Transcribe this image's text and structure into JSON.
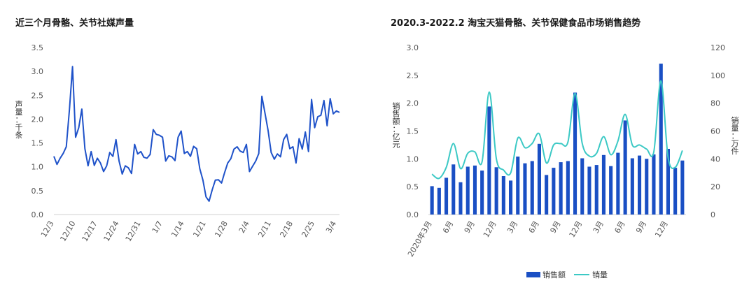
{
  "colors": {
    "line1": "#1f52c9",
    "bar": "#1a4fc4",
    "line2": "#3cc9c5",
    "axis": "#d0d0d0"
  },
  "chart_data": [
    {
      "type": "line",
      "title": "近三个月骨骼、关节社媒声量",
      "ylabel": "声量：千条",
      "ylim": [
        0,
        3.5
      ],
      "yticks": [
        "0.0",
        "0.5",
        "1.0",
        "1.5",
        "2.0",
        "2.5",
        "3.0",
        "3.5"
      ],
      "x": [
        "12/3",
        "12/4",
        "12/5",
        "12/6",
        "12/7",
        "12/8",
        "12/9",
        "12/10",
        "12/11",
        "12/12",
        "12/13",
        "12/14",
        "12/15",
        "12/16",
        "12/17",
        "12/18",
        "12/19",
        "12/20",
        "12/21",
        "12/22",
        "12/23",
        "12/24",
        "12/25",
        "12/26",
        "12/27",
        "12/28",
        "12/29",
        "12/30",
        "12/31",
        "1/1",
        "1/2",
        "1/3",
        "1/4",
        "1/5",
        "1/6",
        "1/7",
        "1/8",
        "1/9",
        "1/10",
        "1/11",
        "1/12",
        "1/13",
        "1/14",
        "1/15",
        "1/16",
        "1/17",
        "1/18",
        "1/19",
        "1/20",
        "1/21",
        "1/22",
        "1/23",
        "1/24",
        "1/25",
        "1/26",
        "1/27",
        "1/28",
        "1/29",
        "1/30",
        "1/31",
        "2/1",
        "2/2",
        "2/3",
        "2/4",
        "2/5",
        "2/6",
        "2/7",
        "2/8",
        "2/9",
        "2/10",
        "2/11",
        "2/12",
        "2/13",
        "2/14",
        "2/15",
        "2/16",
        "2/17",
        "2/18",
        "2/19",
        "2/20",
        "2/21",
        "2/22",
        "2/23",
        "2/24",
        "2/25",
        "2/26",
        "2/27",
        "2/28",
        "3/1",
        "3/2",
        "3/3",
        "3/4",
        "3/5"
      ],
      "xtick_labels": [
        "12/3",
        "12/10",
        "12/17",
        "12/24",
        "12/31",
        "1/7",
        "1/14",
        "1/21",
        "1/28",
        "2/4",
        "2/11",
        "2/18",
        "2/25",
        "3/4"
      ],
      "series": [
        {
          "values": [
            1.22,
            1.05,
            1.18,
            1.28,
            1.42,
            2.2,
            3.1,
            1.62,
            1.82,
            2.21,
            1.38,
            1.02,
            1.32,
            1.03,
            1.18,
            1.08,
            0.9,
            1.02,
            1.3,
            1.22,
            1.57,
            1.12,
            0.85,
            1.02,
            0.98,
            0.86,
            1.47,
            1.27,
            1.32,
            1.2,
            1.18,
            1.26,
            1.78,
            1.68,
            1.66,
            1.62,
            1.12,
            1.23,
            1.21,
            1.13,
            1.62,
            1.75,
            1.28,
            1.32,
            1.22,
            1.43,
            1.38,
            0.96,
            0.72,
            0.37,
            0.28,
            0.52,
            0.72,
            0.73,
            0.66,
            0.88,
            1.08,
            1.17,
            1.37,
            1.42,
            1.33,
            1.3,
            1.47,
            0.9,
            1.01,
            1.12,
            1.28,
            2.48,
            2.12,
            1.76,
            1.3,
            1.16,
            1.27,
            1.21,
            1.57,
            1.68,
            1.38,
            1.42,
            1.08,
            1.59,
            1.37,
            1.73,
            1.32,
            2.41,
            1.82,
            2.05,
            2.08,
            2.39,
            1.86,
            2.43,
            2.11,
            2.17,
            2.14
          ]
        }
      ]
    },
    {
      "type": "bar+line",
      "title": "2020.3-2022.2 淘宝天猫骨骼、关节保健食品市场销售趋势",
      "ylabel": "销售额：亿元",
      "y2label": "销量：万件",
      "ylim": [
        0,
        3.0
      ],
      "y2lim": [
        0,
        120
      ],
      "yticks": [
        "0.0",
        "0.5",
        "1.0",
        "1.5",
        "2.0",
        "2.5",
        "3.0"
      ],
      "y2ticks": [
        "0",
        "20",
        "40",
        "60",
        "80",
        "100",
        "120"
      ],
      "categories": [
        "2020年3月",
        "4",
        "5",
        "6月",
        "7",
        "8",
        "9月",
        "10",
        "11",
        "12月",
        "1",
        "2",
        "3月",
        "4",
        "5",
        "6月",
        "7",
        "8",
        "9月",
        "10",
        "11",
        "12月",
        "1",
        "2",
        "3月",
        "4",
        "5",
        "6月",
        "7",
        "8",
        "9月",
        "10",
        "11",
        "12月",
        "1",
        "2"
      ],
      "xtick_labels": [
        "2020年3月",
        "6月",
        "9月",
        "12月",
        "3月",
        "6月",
        "9月",
        "12月",
        "3月",
        "6月",
        "9月",
        "12月"
      ],
      "series": [
        {
          "name": "销售额",
          "kind": "bar",
          "axis": "left",
          "values": [
            0.51,
            0.48,
            0.66,
            0.9,
            0.58,
            0.86,
            0.88,
            0.79,
            1.94,
            0.85,
            0.69,
            0.61,
            1.04,
            0.92,
            0.96,
            1.27,
            0.71,
            0.84,
            0.94,
            0.96,
            2.19,
            1.01,
            0.86,
            0.89,
            1.07,
            0.87,
            1.11,
            1.69,
            1.01,
            1.06,
            1.0,
            1.08,
            2.71,
            1.18,
            0.84,
            0.97
          ]
        },
        {
          "name": "销量",
          "kind": "line",
          "axis": "right",
          "values": [
            29,
            26,
            34,
            51,
            33,
            44,
            45,
            38,
            88,
            40,
            32,
            30,
            55,
            48,
            51,
            58,
            37,
            50,
            51,
            52,
            87,
            51,
            42,
            44,
            56,
            43,
            53,
            72,
            50,
            50,
            47,
            45,
            96,
            41,
            34,
            46
          ]
        }
      ],
      "legend_position": "bottom-center"
    }
  ]
}
